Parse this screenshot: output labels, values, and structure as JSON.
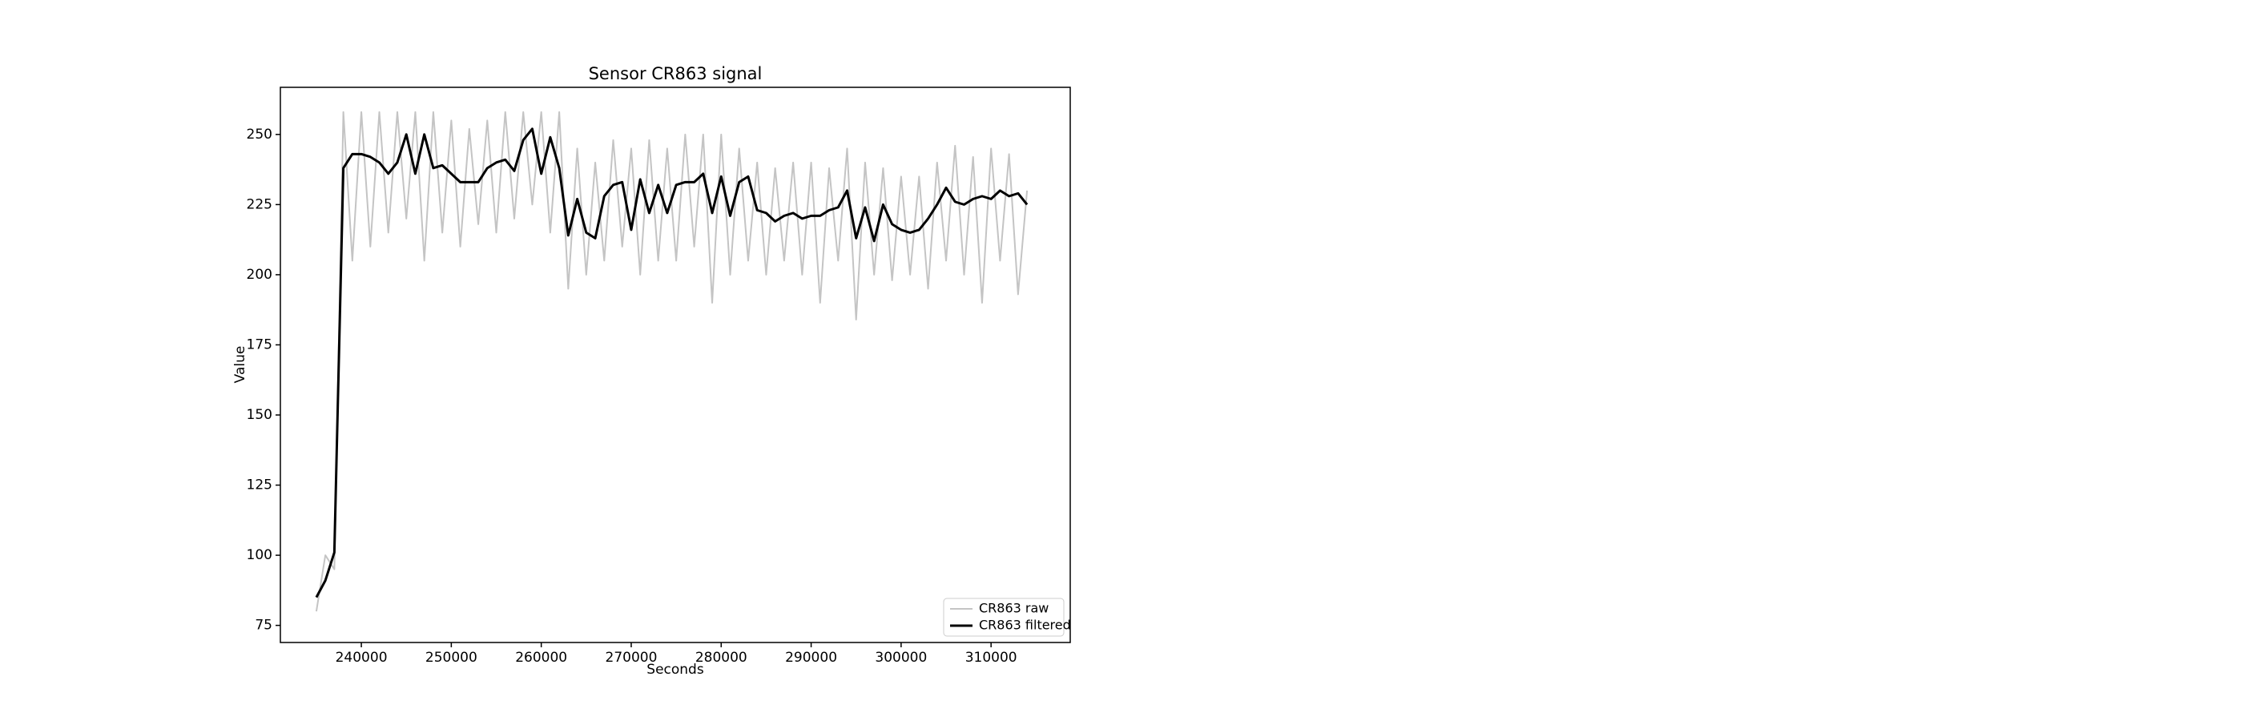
{
  "chart_data": {
    "type": "line",
    "title": "Sensor CR863 signal",
    "x_label": "Seconds",
    "y_label": "Value",
    "x": [
      235000,
      236000,
      237000,
      238000,
      239000,
      240000,
      241000,
      242000,
      243000,
      244000,
      245000,
      246000,
      247000,
      248000,
      249000,
      250000,
      251000,
      252000,
      253000,
      254000,
      255000,
      256000,
      257000,
      258000,
      259000,
      260000,
      261000,
      262000,
      263000,
      264000,
      265000,
      266000,
      267000,
      268000,
      269000,
      270000,
      271000,
      272000,
      273000,
      274000,
      275000,
      276000,
      277000,
      278000,
      279000,
      280000,
      281000,
      282000,
      283000,
      284000,
      285000,
      286000,
      287000,
      288000,
      289000,
      290000,
      291000,
      292000,
      293000,
      294000,
      295000,
      296000,
      297000,
      298000,
      299000,
      300000,
      301000,
      302000,
      303000,
      304000,
      305000,
      306000,
      307000,
      308000,
      309000,
      310000,
      311000,
      312000,
      313000,
      314000
    ],
    "series": [
      {
        "name": "CR863 raw",
        "color": "#c4c4c4",
        "width": 2,
        "values": [
          80,
          100,
          95,
          258,
          205,
          258,
          210,
          258,
          215,
          258,
          220,
          258,
          205,
          258,
          215,
          255,
          210,
          252,
          218,
          255,
          215,
          258,
          220,
          258,
          225,
          258,
          215,
          258,
          195,
          245,
          200,
          240,
          205,
          248,
          210,
          245,
          200,
          248,
          205,
          245,
          205,
          250,
          210,
          250,
          190,
          250,
          200,
          245,
          205,
          240,
          200,
          238,
          205,
          240,
          200,
          240,
          190,
          238,
          205,
          245,
          184,
          240,
          200,
          238,
          198,
          235,
          200,
          235,
          195,
          240,
          205,
          246,
          200,
          242,
          190,
          245,
          205,
          243,
          193,
          230
        ]
      },
      {
        "name": "CR863 filtered",
        "color": "#000000",
        "width": 3,
        "values": [
          85,
          91,
          101,
          238,
          243,
          243,
          242,
          240,
          236,
          240,
          250,
          236,
          250,
          238,
          239,
          236,
          233,
          233,
          233,
          238,
          240,
          241,
          237,
          248,
          252,
          236,
          249,
          238,
          214,
          227,
          215,
          213,
          228,
          232,
          233,
          216,
          234,
          222,
          232,
          222,
          232,
          233,
          233,
          236,
          222,
          235,
          221,
          233,
          235,
          223,
          222,
          219,
          221,
          222,
          220,
          221,
          221,
          223,
          224,
          230,
          213,
          224,
          212,
          225,
          218,
          216,
          215,
          216,
          220,
          225,
          231,
          226,
          225,
          227,
          228,
          227,
          230,
          228,
          229,
          225
        ]
      }
    ],
    "xlim": [
      231000,
      318800
    ],
    "ylim": [
      68.9,
      266.8
    ],
    "xticks": [
      240000,
      250000,
      260000,
      270000,
      280000,
      290000,
      300000,
      310000
    ],
    "yticks": [
      75,
      100,
      125,
      150,
      175,
      200,
      225,
      250
    ],
    "grid": false,
    "legend": "lower right"
  }
}
